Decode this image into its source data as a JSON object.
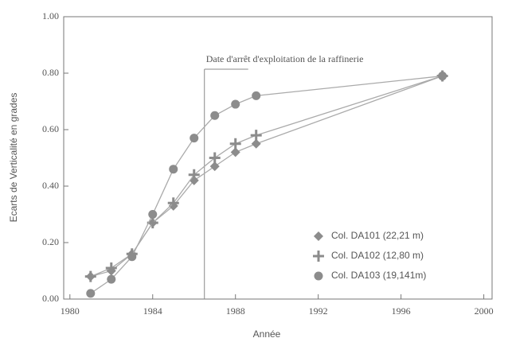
{
  "chart_data": {
    "type": "line",
    "xlabel": "Année",
    "ylabel": "Ecarts de Verticalité en grades",
    "annotation": {
      "text": "Date d'arrêt d'exploitation de la raffinerie",
      "x": 1986.5
    },
    "x": [
      1981,
      1982,
      1983,
      1984,
      1985,
      1986,
      1987,
      1988,
      1989,
      1998
    ],
    "series": [
      {
        "name": "Col. DA101 (22,21 m)",
        "color": "#8c8c8c",
        "marker": "diamond",
        "values": [
          0.08,
          0.1,
          0.16,
          0.27,
          0.33,
          0.42,
          0.47,
          0.52,
          0.55,
          0.79
        ]
      },
      {
        "name": "Col. DA102 (12,80 m)",
        "color": "#8c8c8c",
        "marker": "plus",
        "values": [
          0.08,
          0.11,
          0.16,
          0.27,
          0.34,
          0.44,
          0.5,
          0.55,
          0.58,
          0.79
        ]
      },
      {
        "name": "Col. DA103 (19,141m)",
        "color": "#8c8c8c",
        "marker": "circle",
        "values": [
          0.02,
          0.07,
          0.15,
          0.3,
          0.46,
          0.57,
          0.65,
          0.69,
          0.72,
          0.79
        ]
      }
    ],
    "xlim": [
      1979.7,
      2000.4
    ],
    "xticks": [
      1980,
      1984,
      1988,
      1992,
      1996,
      2000
    ],
    "ylim": [
      0,
      1
    ],
    "yticks": [
      {
        "value": 0,
        "label": "0.00"
      },
      {
        "value": 0.2,
        "label": "0.20"
      },
      {
        "value": 0.4,
        "label": "0.40"
      },
      {
        "value": 0.6,
        "label": "0.60"
      },
      {
        "value": 0.8,
        "label": "0.80"
      },
      {
        "value": 1,
        "label": "1.00"
      }
    ],
    "legend": "lower right",
    "grid": false
  }
}
